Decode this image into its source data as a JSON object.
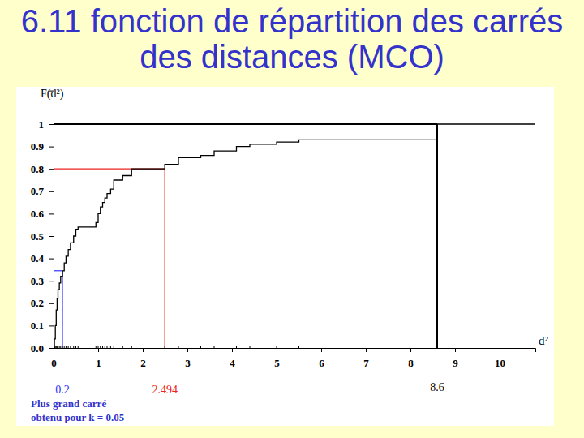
{
  "chart_data": {
    "type": "line",
    "title": "6.11 fonction de répartition des carrés des distances (MCO)",
    "x_label": "d²",
    "y_label": "F(d²)",
    "line_style": "step",
    "color": "black",
    "x": [
      0,
      0.02,
      0.04,
      0.06,
      0.08,
      0.1,
      0.13,
      0.16,
      0.2,
      0.24,
      0.28,
      0.33,
      0.38,
      0.45,
      0.5,
      0.55,
      0.95,
      1.0,
      1.05,
      1.1,
      1.15,
      1.2,
      1.28,
      1.35,
      1.55,
      1.75,
      2.494,
      2.8,
      3.3,
      3.6,
      4.1,
      4.4,
      5.0,
      5.5,
      8.6,
      10.8
    ],
    "values": [
      0,
      0.04,
      0.1,
      0.17,
      0.22,
      0.26,
      0.29,
      0.32,
      0.345,
      0.38,
      0.41,
      0.44,
      0.47,
      0.5,
      0.53,
      0.54,
      0.56,
      0.6,
      0.63,
      0.65,
      0.67,
      0.69,
      0.71,
      0.75,
      0.77,
      0.8,
      0.82,
      0.85,
      0.86,
      0.88,
      0.9,
      0.91,
      0.92,
      0.93,
      1,
      1
    ],
    "xlim": [
      0,
      10.8
    ],
    "ylim": [
      0,
      1.15
    ],
    "xticks": [
      0,
      1,
      2,
      3,
      4,
      5,
      6,
      7,
      8,
      9,
      10
    ],
    "yticks": [
      {
        "value": 0,
        "label": "0.0"
      },
      0.1,
      0.2,
      0.3,
      0.4,
      0.5,
      0.6,
      0.7,
      0.8,
      0.9,
      1
    ],
    "annotations": [
      {
        "x": 0.2,
        "y": 0.345,
        "label": "0.2",
        "color": "#3333ff"
      },
      {
        "x": 2.494,
        "y": 0.8,
        "label": "2.494",
        "color": "#ee2222"
      },
      {
        "x": 8.6,
        "y": 1,
        "label": "8.6",
        "color": "black"
      }
    ],
    "note": [
      "Plus grand carré",
      "obtenu pour k = 0.05"
    ]
  }
}
